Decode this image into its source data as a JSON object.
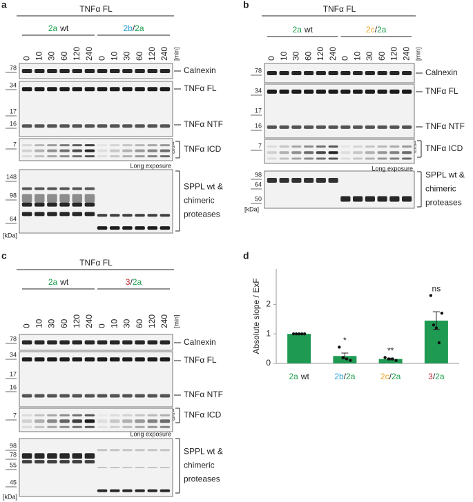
{
  "panels": [
    {
      "letter": "a",
      "title": "TNFα FL",
      "groups": [
        {
          "parts": [
            "2a",
            "wt"
          ],
          "colors": [
            "#1b9e4b",
            "#222222"
          ]
        },
        {
          "parts": [
            "2b",
            "/",
            "2a"
          ],
          "colors": [
            "#2b9fd8",
            "#222222",
            "#1b9e4b"
          ]
        }
      ],
      "times": [
        "0",
        "10",
        "30",
        "60",
        "120",
        "240",
        "0",
        "10",
        "30",
        "60",
        "120",
        "240"
      ],
      "time_unit": "[min]",
      "markers": [
        "78",
        "34",
        "17",
        "16",
        "7",
        "148",
        "98",
        "64"
      ],
      "kda": "[kDa]",
      "blot_labels": [
        "Calnexin",
        "TNFα FL",
        "TNFα NTF",
        "TNFα ICD"
      ],
      "protease_label": [
        "SPPL wt &",
        "chimeric",
        "proteases"
      ],
      "long_exposure": "Long exposure",
      "icd_bands": [
        "1",
        "2",
        "3"
      ]
    },
    {
      "letter": "b",
      "title": "TNFα FL",
      "groups": [
        {
          "parts": [
            "2a",
            "wt"
          ],
          "colors": [
            "#1b9e4b",
            "#222222"
          ]
        },
        {
          "parts": [
            "2c",
            "/",
            "2a"
          ],
          "colors": [
            "#f0a020",
            "#222222",
            "#1b9e4b"
          ]
        }
      ],
      "times": [
        "0",
        "10",
        "30",
        "60",
        "120",
        "240",
        "0",
        "10",
        "30",
        "60",
        "120",
        "240"
      ],
      "time_unit": "[min]",
      "markers": [
        "78",
        "34",
        "17",
        "16",
        "7",
        "98",
        "64",
        "50"
      ],
      "kda": "[kDa]",
      "blot_labels": [
        "Calnexin",
        "TNFα FL",
        "TNFα NTF",
        "TNFα ICD"
      ],
      "protease_label": [
        "SPPL wt &",
        "chimeric",
        "proteases"
      ],
      "long_exposure": "Long exposure",
      "icd_bands": [
        "1",
        "2",
        "3"
      ]
    },
    {
      "letter": "c",
      "title": "TNFα FL",
      "groups": [
        {
          "parts": [
            "2a",
            "wt"
          ],
          "colors": [
            "#1b9e4b",
            "#222222"
          ]
        },
        {
          "parts": [
            "3",
            "/",
            "2a"
          ],
          "colors": [
            "#c0262c",
            "#222222",
            "#1b9e4b"
          ]
        }
      ],
      "times": [
        "0",
        "10",
        "30",
        "60",
        "120",
        "240",
        "0",
        "10",
        "30",
        "60",
        "120",
        "240"
      ],
      "time_unit": "[min]",
      "markers": [
        "78",
        "34",
        "17",
        "16",
        "7",
        "98",
        "78",
        "55",
        "45"
      ],
      "kda": "[kDa]",
      "blot_labels": [
        "Calnexin",
        "TNFα FL",
        "TNFα NTF",
        "TNFα ICD"
      ],
      "protease_label": [
        "SPPL wt &",
        "chimeric",
        "proteases"
      ],
      "long_exposure": "Long exposure",
      "icd_bands": [
        "1",
        "2",
        "3"
      ]
    }
  ],
  "chart_data": {
    "type": "bar",
    "letter": "d",
    "ylabel": "Absolute slope / ExF",
    "categories": [
      [
        "2a",
        "wt"
      ],
      [
        "2b",
        "/",
        "2a"
      ],
      [
        "2c",
        "/",
        "2a"
      ],
      [
        "3",
        "/",
        "2a"
      ]
    ],
    "category_colors": [
      [
        "#1b9e4b",
        "#222222"
      ],
      [
        "#2b9fd8",
        "#222222",
        "#1b9e4b"
      ],
      [
        "#f0a020",
        "#222222",
        "#1b9e4b"
      ],
      [
        "#c0262c",
        "#222222",
        "#1b9e4b"
      ]
    ],
    "values": [
      1,
      0.25,
      0.15,
      1.45
    ],
    "errors": [
      0,
      0.1,
      0.03,
      0.3
    ],
    "points": [
      [
        1,
        1,
        1,
        1,
        1
      ],
      [
        0.55,
        0.2,
        0.15,
        0.1
      ],
      [
        0.2,
        0.15,
        0.15,
        0.1
      ],
      [
        2.3,
        1.3,
        1.2,
        0.7,
        1.7
      ]
    ],
    "annotations": [
      null,
      "*",
      "**",
      "ns"
    ],
    "color": "#1f9a52",
    "ylim": [
      0,
      3.2
    ],
    "yticks": [
      0,
      1,
      2
    ]
  }
}
